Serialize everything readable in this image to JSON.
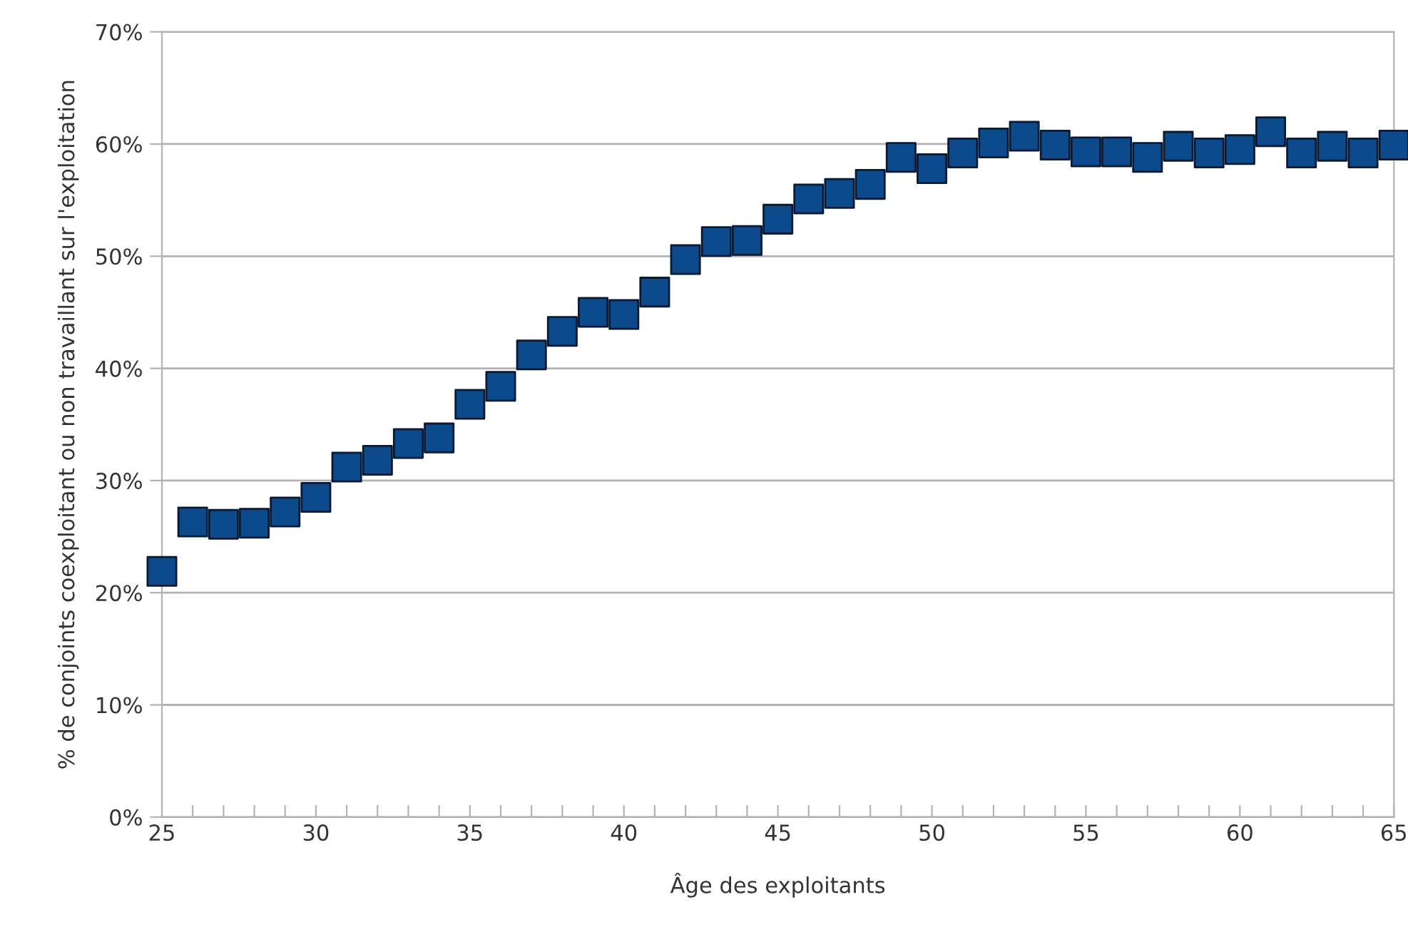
{
  "chart_data": {
    "type": "scatter",
    "xlabel": "Âge des exploitants",
    "ylabel": "% de conjoints coexploitant ou non travaillant sur l'exploitation",
    "x": [
      25,
      26,
      27,
      28,
      29,
      30,
      31,
      32,
      33,
      34,
      35,
      36,
      37,
      38,
      39,
      40,
      41,
      42,
      43,
      44,
      45,
      46,
      47,
      48,
      49,
      50,
      51,
      52,
      53,
      54,
      55,
      56,
      57,
      58,
      59,
      60,
      61,
      62,
      63,
      64,
      65
    ],
    "series": [
      {
        "color": "#0d4a8c",
        "values": [
          21.9,
          26.3,
          26.1,
          26.2,
          27.2,
          28.5,
          31.2,
          31.8,
          33.3,
          33.8,
          36.8,
          38.4,
          41.2,
          43.3,
          45.0,
          44.8,
          46.8,
          49.7,
          51.3,
          51.4,
          53.3,
          55.1,
          55.6,
          56.4,
          58.8,
          57.8,
          59.2,
          60.1,
          60.7,
          59.9,
          59.3,
          59.3,
          58.8,
          59.8,
          59.2,
          59.5,
          61.1,
          59.2,
          59.8,
          59.2,
          59.9
        ]
      }
    ],
    "xlim": [
      25,
      65
    ],
    "xticks": [
      25,
      {
        "value": 26,
        "label": null
      },
      {
        "value": 27,
        "label": null
      },
      {
        "value": 28,
        "label": null
      },
      {
        "value": 29,
        "label": null
      },
      30,
      {
        "value": 31,
        "label": null
      },
      {
        "value": 32,
        "label": null
      },
      {
        "value": 33,
        "label": null
      },
      {
        "value": 34,
        "label": null
      },
      35,
      {
        "value": 36,
        "label": null
      },
      {
        "value": 37,
        "label": null
      },
      {
        "value": 38,
        "label": null
      },
      {
        "value": 39,
        "label": null
      },
      40,
      {
        "value": 41,
        "label": null
      },
      {
        "value": 42,
        "label": null
      },
      {
        "value": 43,
        "label": null
      },
      {
        "value": 44,
        "label": null
      },
      45,
      {
        "value": 46,
        "label": null
      },
      {
        "value": 47,
        "label": null
      },
      {
        "value": 48,
        "label": null
      },
      {
        "value": 49,
        "label": null
      },
      50,
      {
        "value": 51,
        "label": null
      },
      {
        "value": 52,
        "label": null
      },
      {
        "value": 53,
        "label": null
      },
      {
        "value": 54,
        "label": null
      },
      55,
      {
        "value": 56,
        "label": null
      },
      {
        "value": 57,
        "label": null
      },
      {
        "value": 58,
        "label": null
      },
      {
        "value": 59,
        "label": null
      },
      60,
      {
        "value": 61,
        "label": null
      },
      {
        "value": 62,
        "label": null
      },
      {
        "value": 63,
        "label": null
      },
      {
        "value": 64,
        "label": null
      },
      65
    ],
    "ylim": [
      0,
      70
    ],
    "yticks": [
      {
        "value": 0,
        "label": "0%"
      },
      {
        "value": 10,
        "label": "10%"
      },
      {
        "value": 20,
        "label": "20%"
      },
      {
        "value": 30,
        "label": "30%"
      },
      {
        "value": 40,
        "label": "40%"
      },
      {
        "value": 50,
        "label": "50%"
      },
      {
        "value": 60,
        "label": "60%"
      },
      {
        "value": 70,
        "label": "70%"
      }
    ],
    "grid": "y",
    "marker": "square",
    "legend": false
  }
}
